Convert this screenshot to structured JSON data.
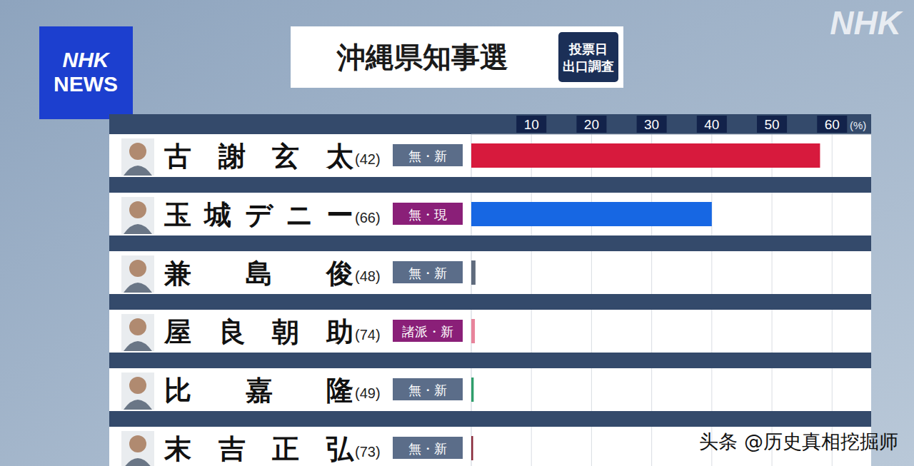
{
  "chart_data": {
    "type": "bar",
    "orientation": "horizontal",
    "title": "沖縄県知事選",
    "subtitle": "投票日\n出口調査",
    "categories": [
      "古謝玄太",
      "玉城デニー",
      "兼島俊",
      "屋良朝助",
      "比嘉隆",
      "末吉正弘"
    ],
    "ages": [
      "(42)",
      "(66)",
      "(48)",
      "(74)",
      "(49)",
      "(73)"
    ],
    "affiliations": [
      "無・新",
      "無・現",
      "無・新",
      "諸派・新",
      "無・新",
      "無・新"
    ],
    "values": [
      58,
      40,
      0.7,
      0.6,
      0.4,
      0.3
    ],
    "colors": [
      "#d71a3d",
      "#1767e3",
      "#5f6b7d",
      "#e8849b",
      "#2f9e6b",
      "#8a2a3b"
    ],
    "xlim": [
      0,
      66.5
    ],
    "xticks": [
      10,
      20,
      30,
      40,
      50,
      60
    ],
    "xlabel": "(%)",
    "grid": true,
    "tick_labels": "x",
    "logo": "NHK\nNEWS",
    "watermark": "NHK",
    "source": "头条 @历史真相挖掘师"
  }
}
